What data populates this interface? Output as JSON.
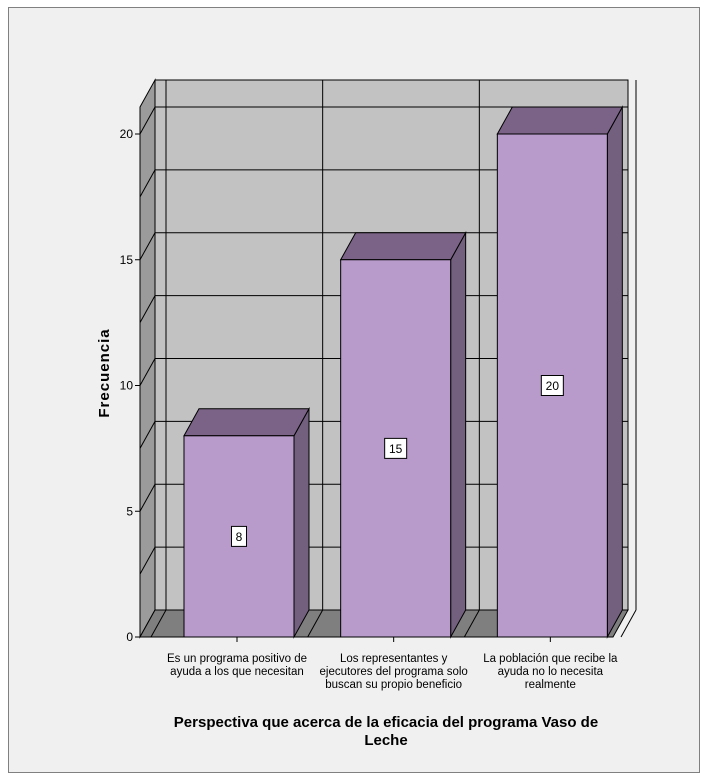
{
  "chart_data": {
    "type": "bar",
    "style": "3d",
    "ylabel": "Frecuencia",
    "xlabel": "Perspectiva que acerca de la eficacia del programa Vaso de Leche",
    "xlabel_lines": [
      "Perspectiva que acerca de la eficacia del programa Vaso de",
      "Leche"
    ],
    "ylim": [
      0,
      20
    ],
    "yticks": [
      "0",
      "5",
      "10",
      "15",
      "20"
    ],
    "grid": true,
    "categories": [
      "Es un programa positivo de ayuda a los que necesitan",
      "Los representantes y ejecutores del programa solo buscan su propio beneficio",
      "La población que recibe la ayuda no lo necesita realmente"
    ],
    "category_lines": [
      [
        "Es un programa positivo de",
        "ayuda a los que necesitan"
      ],
      [
        "Los representantes y",
        "ejecutores del programa solo",
        "buscan su propio beneficio"
      ],
      [
        "La población que recibe la",
        "ayuda no lo necesita",
        "realmente"
      ]
    ],
    "values": [
      8,
      15,
      20
    ],
    "data_labels": [
      "8",
      "15",
      "20"
    ],
    "colors": {
      "bar_front": "#b89bcb",
      "bar_top": "#7a6387",
      "bar_side": "#72607e",
      "wall": "#c2c2c2",
      "wall_left": "#9b9b9b",
      "floor": "#7f7f7f"
    }
  }
}
